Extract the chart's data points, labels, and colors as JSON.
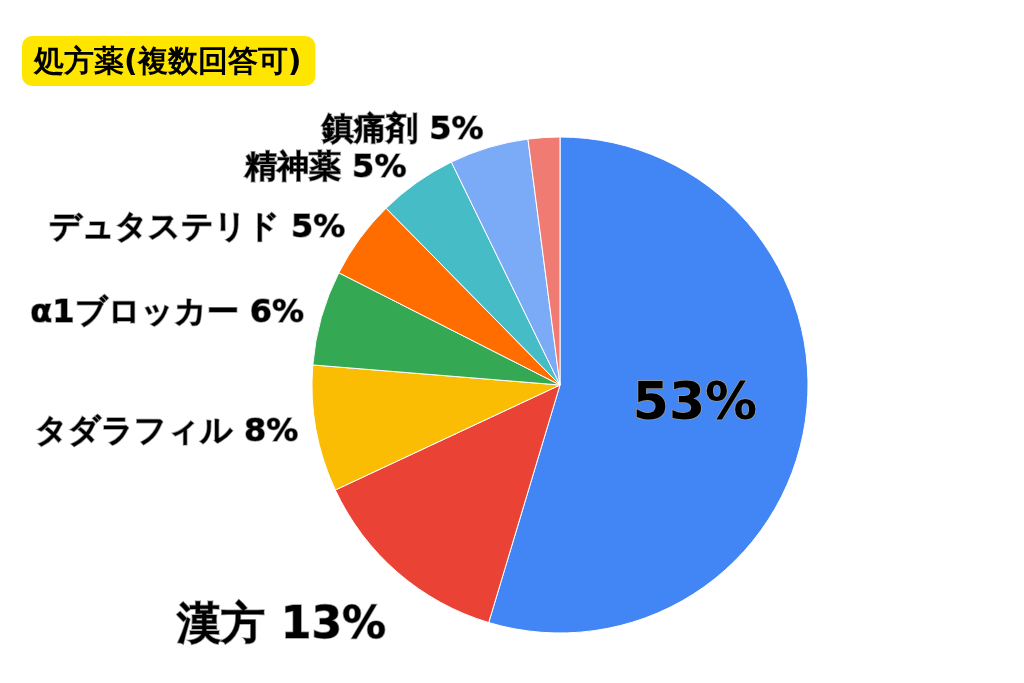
{
  "chart_data": {
    "type": "pie",
    "title": "処方薬(複数回答可)",
    "categories": [
      null,
      "漢方",
      "タダラフィル",
      "α1ブロッカー",
      "デュタステリド",
      "精神薬",
      "鎮痛剤",
      null
    ],
    "values": [
      53,
      13,
      8,
      6,
      5,
      5,
      5,
      2
    ],
    "colors": [
      "#4285f4",
      "#ea4335",
      "#fbbc04",
      "#34a853",
      "#ff6d01",
      "#46bdc6",
      "#7baaf7",
      "#f07b72"
    ],
    "value_labels": [
      "53%",
      "13%",
      "8%",
      "6%",
      "5%",
      "5%",
      "5%",
      null
    ]
  }
}
